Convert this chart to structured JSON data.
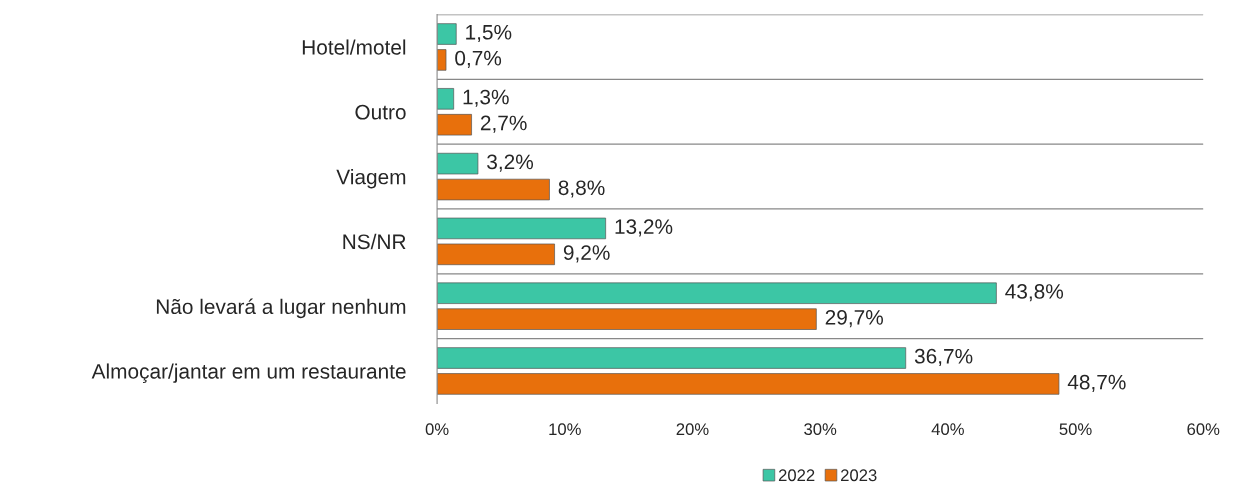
{
  "chart_data": {
    "type": "bar",
    "orientation": "horizontal",
    "categories": [
      "Hotel/motel",
      "Outro",
      "Viagem",
      "NS/NR",
      "Não levará a lugar nenhum",
      "Almoçar/jantar em um restaurante"
    ],
    "series": [
      {
        "name": "2022",
        "color": "#3cc6a5",
        "values": [
          1.5,
          1.3,
          3.2,
          13.2,
          43.8,
          36.7
        ],
        "value_labels": [
          "1,5%",
          "1,3%",
          "3,2%",
          "13,2%",
          "43,8%",
          "36,7%"
        ]
      },
      {
        "name": "2023",
        "color": "#e8700c",
        "values": [
          0.7,
          2.7,
          8.8,
          9.2,
          29.7,
          48.7
        ],
        "value_labels": [
          "0,7%",
          "2,7%",
          "8,8%",
          "9,2%",
          "29,7%",
          "48,7%"
        ]
      }
    ],
    "xlim": [
      0,
      60
    ],
    "xticks": [
      {
        "value": 0,
        "label": "0%"
      },
      {
        "value": 10,
        "label": "10%"
      },
      {
        "value": 20,
        "label": "20%"
      },
      {
        "value": 30,
        "label": "30%"
      },
      {
        "value": 40,
        "label": "40%"
      },
      {
        "value": 50,
        "label": "50%"
      },
      {
        "value": 60,
        "label": "60%"
      }
    ],
    "grid": "y",
    "legend": "bottom"
  }
}
